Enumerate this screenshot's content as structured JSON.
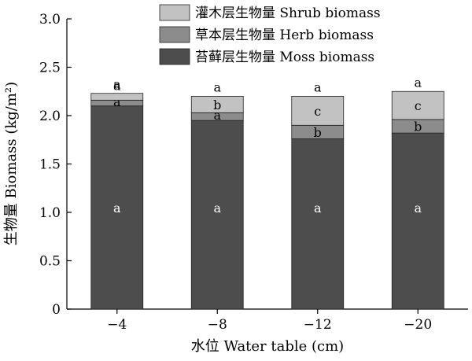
{
  "chart_data": {
    "type": "bar",
    "stacked": true,
    "xlabel": "水位 Water table (cm)",
    "ylabel": "生物量 Biomass (kg/m²)",
    "ylim": [
      0,
      3.0
    ],
    "yticks": [
      "0",
      "0.5",
      "1.0",
      "1.5",
      "2.0",
      "2.5",
      "3.0"
    ],
    "ytick_values": [
      0,
      0.5,
      1.0,
      1.5,
      2.0,
      2.5,
      3.0
    ],
    "categories": [
      "−4",
      "−8",
      "−12",
      "−20"
    ],
    "legend_position": "top-right",
    "series": [
      {
        "name": "苔藓层生物量 Moss biomass",
        "color": "#4d4d4d",
        "values": [
          2.1,
          1.95,
          1.76,
          1.82
        ],
        "letters": [
          "a",
          "a",
          "a",
          "a"
        ]
      },
      {
        "name": "草本层生物量 Herb biomass",
        "color": "#8c8c8c",
        "values": [
          0.06,
          0.08,
          0.14,
          0.14
        ],
        "letters": [
          "a",
          "a",
          "b",
          "b"
        ]
      },
      {
        "name": "灌木层生物量 Shrub biomass",
        "color": "#c2c2c2",
        "values": [
          0.07,
          0.17,
          0.3,
          0.29
        ],
        "letters": [
          "a",
          "b",
          "c",
          "c"
        ]
      }
    ]
  }
}
